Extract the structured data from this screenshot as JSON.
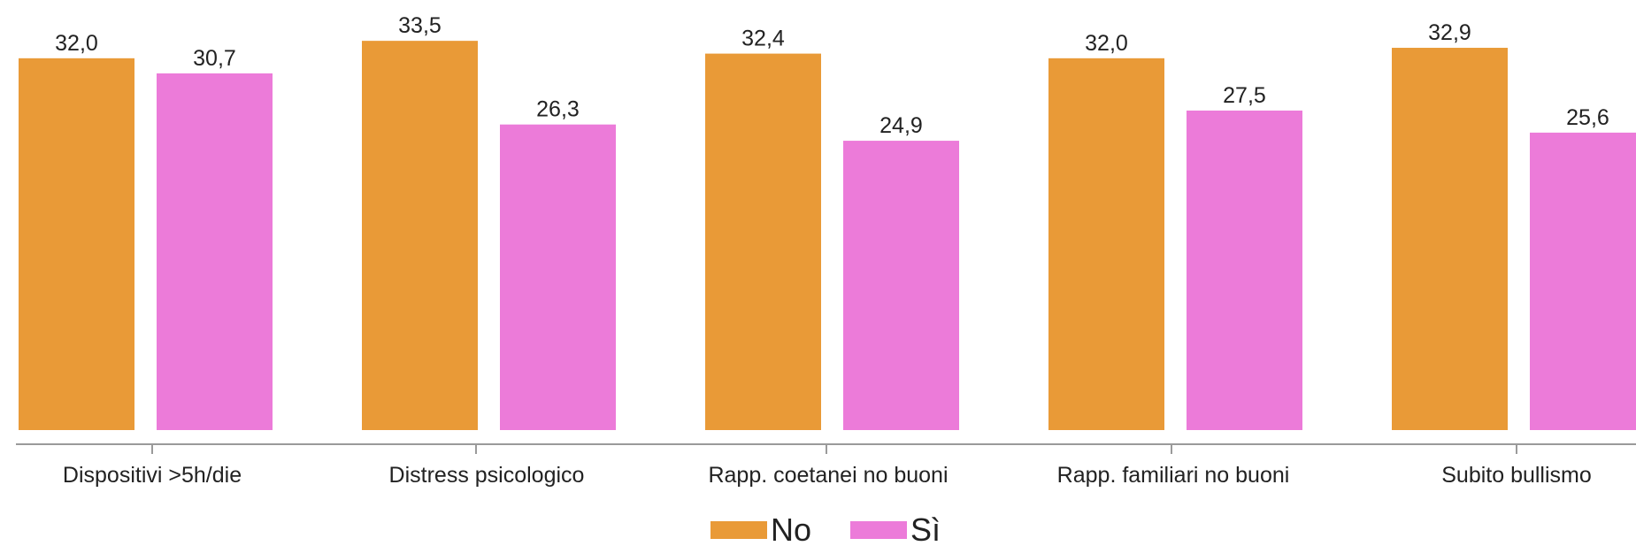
{
  "chart_data": {
    "type": "bar",
    "title": "",
    "xlabel": "",
    "ylabel": "",
    "ylim": [
      0,
      35
    ],
    "grid": false,
    "legend_position": "bottom-center",
    "categories": [
      "Dispositivi >5h/die",
      "Distress psicologico",
      "Rapp. coetanei no buoni",
      "Rapp. familiari no buoni",
      "Subito bullismo"
    ],
    "series": [
      {
        "name": "No",
        "color": "#E99A37",
        "values": [
          32.0,
          33.5,
          32.4,
          32.0,
          32.9
        ],
        "labels": [
          "32,0",
          "33,5",
          "32,4",
          "32,0",
          "32,9"
        ]
      },
      {
        "name": "Sì",
        "color": "#EC7BD9",
        "values": [
          30.7,
          26.3,
          24.9,
          27.5,
          25.6
        ],
        "labels": [
          "30,7",
          "26,3",
          "24,9",
          "27,5",
          "25,6"
        ]
      }
    ]
  }
}
